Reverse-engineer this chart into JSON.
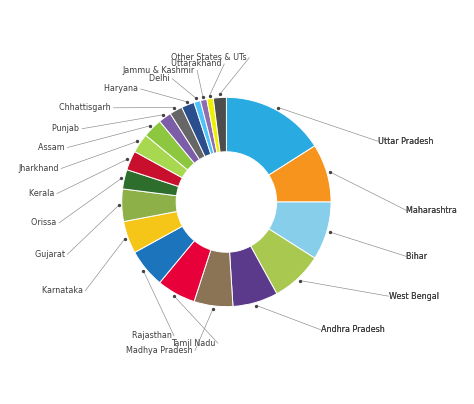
{
  "labels": [
    "Uttar Pradesh",
    "Maharashtra",
    "Bihar",
    "West Bengal",
    "Andhra Pradesh",
    "Madhya Pradesh",
    "Tamil Nadu",
    "Rajasthan",
    "Karnataka",
    "Gujarat",
    "Orissa",
    "Kerala",
    "Jharkhand",
    "Assam",
    "Punjab",
    "Chhattisgarh",
    "Haryana",
    "Delhi",
    "Jammu & Kashmir",
    "Uttarakhand",
    "Other States & UTs"
  ],
  "values": [
    16,
    9,
    9,
    8,
    7,
    6,
    6,
    6,
    5,
    5,
    3,
    3,
    3,
    3,
    2,
    2,
    2,
    1,
    1,
    1,
    2
  ],
  "colors": [
    "#29ABE2",
    "#F7941D",
    "#87CEEB",
    "#A8C850",
    "#5B3A8C",
    "#8B7355",
    "#E8003A",
    "#1C75BC",
    "#F5C518",
    "#8DB048",
    "#2D6E2D",
    "#C8102E",
    "#A8D850",
    "#8DC63F",
    "#7B5EA7",
    "#666666",
    "#2B4E8C",
    "#4FC3F7",
    "#8E6DB0",
    "#EFEF00",
    "#4D4D4D"
  ],
  "bg_color": "#FFFFFF"
}
